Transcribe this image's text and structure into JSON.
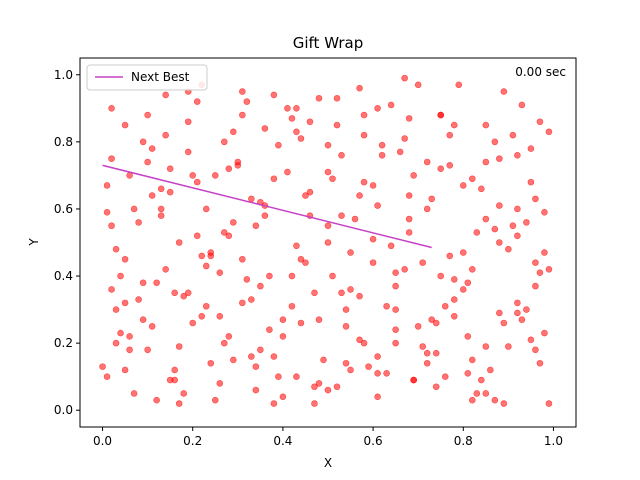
{
  "chart_data": {
    "type": "scatter",
    "title": "Gift Wrap",
    "xlabel": "X",
    "ylabel": "Y",
    "xlim": [
      -0.05,
      1.05
    ],
    "ylim": [
      -0.05,
      1.05
    ],
    "xticks": [
      "0.0",
      "0.2",
      "0.4",
      "0.6",
      "0.8",
      "1.0"
    ],
    "yticks": [
      "0.0",
      "0.2",
      "0.4",
      "0.6",
      "0.8",
      "1.0"
    ],
    "grid": false,
    "annotation": "0.00 sec",
    "legend": {
      "placement": "top-left",
      "entries": [
        {
          "label": "Next Best",
          "color": "#c640c6"
        }
      ]
    },
    "series": [
      {
        "name": "Next Best",
        "type": "line",
        "color": "#c640c6",
        "x": [
          0.0,
          0.73
        ],
        "y": [
          0.73,
          0.485
        ]
      },
      {
        "type": "scatter",
        "color": "#ff0000",
        "x": [
          0.01,
          0.02,
          0.03,
          0.05,
          0.08,
          0.11,
          0.13,
          0.16,
          0.19,
          0.22,
          0.25,
          0.28,
          0.31,
          0.34,
          0.37,
          0.4,
          0.43,
          0.46,
          0.49,
          0.52,
          0.55,
          0.58,
          0.61,
          0.64,
          0.67,
          0.7,
          0.73,
          0.76,
          0.79,
          0.82,
          0.85,
          0.88,
          0.91,
          0.94,
          0.97,
          0.99,
          0.02,
          0.05,
          0.09,
          0.12,
          0.15,
          0.18,
          0.21,
          0.24,
          0.27,
          0.3,
          0.33,
          0.36,
          0.39,
          0.42,
          0.45,
          0.48,
          0.51,
          0.54,
          0.57,
          0.6,
          0.63,
          0.66,
          0.69,
          0.72,
          0.75,
          0.78,
          0.81,
          0.84,
          0.87,
          0.9,
          0.93,
          0.96,
          0.98,
          0.03,
          0.06,
          0.1,
          0.14,
          0.17,
          0.2,
          0.23,
          0.26,
          0.29,
          0.32,
          0.35,
          0.38,
          0.41,
          0.44,
          0.47,
          0.5,
          0.53,
          0.56,
          0.59,
          0.62,
          0.65,
          0.68,
          0.71,
          0.74,
          0.77,
          0.8,
          0.83,
          0.86,
          0.89,
          0.92,
          0.95,
          0.97,
          0.01,
          0.04,
          0.07,
          0.11,
          0.14,
          0.18,
          0.21,
          0.25,
          0.28,
          0.31,
          0.35,
          0.38,
          0.42,
          0.45,
          0.48,
          0.52,
          0.55,
          0.58,
          0.62,
          0.65,
          0.68,
          0.72,
          0.75,
          0.78,
          0.82,
          0.85,
          0.88,
          0.92,
          0.95,
          0.98,
          0.02,
          0.06,
          0.09,
          0.13,
          0.16,
          0.19,
          0.23,
          0.26,
          0.3,
          0.33,
          0.36,
          0.4,
          0.43,
          0.47,
          0.5,
          0.53,
          0.57,
          0.6,
          0.63,
          0.67,
          0.7,
          0.74,
          0.77,
          0.8,
          0.84,
          0.87,
          0.9,
          0.94,
          0.97,
          0.03,
          0.07,
          0.1,
          0.14,
          0.17,
          0.21,
          0.24,
          0.27,
          0.31,
          0.34,
          0.38,
          0.41,
          0.44,
          0.48,
          0.51,
          0.55,
          0.58,
          0.61,
          0.65,
          0.68,
          0.72,
          0.75,
          0.78,
          0.82,
          0.85,
          0.89,
          0.92,
          0.96,
          0.99,
          0.04,
          0.08,
          0.12,
          0.15,
          0.19,
          0.22,
          0.26,
          0.29,
          0.33,
          0.36,
          0.4,
          0.43,
          0.47,
          0.5,
          0.54,
          0.57,
          0.61,
          0.64,
          0.68,
          0.71,
          0.75,
          0.78,
          0.82,
          0.85,
          0.89,
          0.92,
          0.96,
          0.0,
          0.05,
          0.09,
          0.13,
          0.17,
          0.2,
          0.24,
          0.28,
          0.32,
          0.35,
          0.39,
          0.43,
          0.46,
          0.5,
          0.54,
          0.58,
          0.61,
          0.65,
          0.69,
          0.72,
          0.76,
          0.8,
          0.83,
          0.87,
          0.91,
          0.95,
          0.98,
          0.02,
          0.06,
          0.11,
          0.15,
          0.19,
          0.23,
          0.27,
          0.31,
          0.34,
          0.38,
          0.42,
          0.46,
          0.5,
          0.53,
          0.57,
          0.61,
          0.65,
          0.69,
          0.73,
          0.77,
          0.81,
          0.85,
          0.88,
          0.92,
          0.96,
          0.01,
          0.05,
          0.1,
          0.16,
          0.22,
          0.29,
          0.37,
          0.44,
          0.52,
          0.6,
          0.67,
          0.74,
          0.81,
          0.88,
          0.93,
          0.99
        ],
        "y": [
          0.67,
          0.9,
          0.2,
          0.45,
          0.33,
          0.78,
          0.6,
          0.12,
          0.95,
          0.28,
          0.7,
          0.52,
          0.88,
          0.06,
          0.4,
          0.22,
          0.83,
          0.58,
          0.15,
          0.93,
          0.36,
          0.68,
          0.04,
          0.49,
          0.81,
          0.25,
          0.63,
          0.1,
          0.97,
          0.42,
          0.19,
          0.75,
          0.55,
          0.3,
          0.86,
          0.02,
          0.55,
          0.12,
          0.8,
          0.38,
          0.65,
          0.05,
          0.92,
          0.47,
          0.2,
          0.73,
          0.33,
          0.58,
          0.1,
          0.87,
          0.44,
          0.27,
          0.69,
          0.14,
          0.96,
          0.51,
          0.31,
          0.77,
          0.09,
          0.6,
          0.4,
          0.85,
          0.22,
          0.66,
          0.03,
          0.48,
          0.91,
          0.18,
          0.59,
          0.3,
          0.7,
          0.18,
          0.94,
          0.5,
          0.26,
          0.6,
          0.08,
          0.83,
          0.39,
          0.62,
          0.16,
          0.9,
          0.45,
          0.02,
          0.71,
          0.35,
          0.57,
          0.13,
          0.79,
          0.24,
          0.64,
          0.44,
          0.07,
          0.82,
          0.36,
          0.53,
          0.12,
          0.95,
          0.29,
          0.68,
          0.41,
          0.1,
          0.4,
          0.6,
          0.25,
          0.82,
          0.34,
          0.52,
          0.03,
          0.72,
          0.45,
          0.18,
          0.94,
          0.31,
          0.64,
          0.08,
          0.85,
          0.47,
          0.2,
          0.76,
          0.37,
          0.57,
          0.14,
          0.88,
          0.28,
          0.69,
          0.05,
          0.5,
          0.32,
          0.78,
          0.23,
          0.75,
          0.22,
          0.38,
          0.66,
          0.09,
          0.86,
          0.43,
          0.28,
          0.74,
          0.16,
          0.61,
          0.04,
          0.9,
          0.35,
          0.55,
          0.76,
          0.21,
          0.67,
          0.11,
          0.42,
          0.97,
          0.26,
          0.73,
          0.47,
          0.09,
          0.8,
          0.19,
          0.56,
          0.14,
          0.48,
          0.05,
          0.88,
          0.42,
          0.19,
          0.68,
          0.14,
          0.8,
          0.32,
          0.55,
          0.02,
          0.71,
          0.26,
          0.93,
          0.4,
          0.12,
          0.82,
          0.61,
          0.3,
          0.87,
          0.17,
          0.72,
          0.39,
          0.03,
          0.85,
          0.26,
          0.6,
          0.44,
          0.83,
          0.23,
          0.56,
          0.03,
          0.72,
          0.35,
          0.97,
          0.41,
          0.15,
          0.63,
          0.84,
          0.27,
          0.49,
          0.07,
          0.79,
          0.3,
          0.64,
          0.11,
          0.91,
          0.53,
          0.19,
          0.88,
          0.33,
          0.15,
          0.57,
          0.02,
          0.76,
          0.37,
          0.13,
          0.85,
          0.27,
          0.58,
          0.02,
          0.7,
          0.46,
          0.22,
          0.92,
          0.37,
          0.79,
          0.1,
          0.65,
          0.5,
          0.25,
          0.88,
          0.16,
          0.41,
          0.09,
          0.74,
          0.31,
          0.67,
          0.05,
          0.54,
          0.82,
          0.21,
          0.47,
          0.36,
          0.18,
          0.64,
          0.09,
          0.77,
          0.31,
          0.53,
          0.95,
          0.13,
          0.69,
          0.4,
          0.86,
          0.06,
          0.58,
          0.34,
          0.9,
          0.2,
          0.7,
          0.27,
          0.46,
          0.11,
          0.74,
          0.29,
          0.52,
          0.63,
          0.59,
          0.32,
          0.74,
          0.35,
          0.46,
          0.56,
          0.24,
          0.81,
          0.07,
          0.44,
          0.99,
          0.17,
          0.38,
          0.61,
          0.27,
          0.42
        ]
      }
    ]
  }
}
